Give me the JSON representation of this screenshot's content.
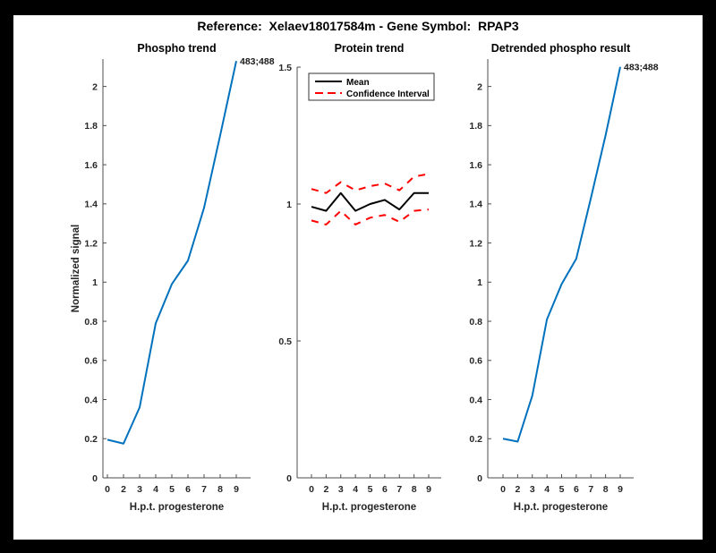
{
  "figure": {
    "title": "Reference:  Xelaev18017584m - Gene Symbol:  RPAP3",
    "background_color": "#ffffff",
    "frame_color": "#000000",
    "axis_color": "#4d4d4d",
    "accent_blue": "#0072BD",
    "ci_red": "#ff0000"
  },
  "chart_data": [
    {
      "type": "line",
      "title": "Phospho trend",
      "xlabel": "H.p.t. progesterone",
      "ylabel": "Normalized signal",
      "x_ticklabels": [
        "0",
        "2",
        "3",
        "4",
        "5",
        "6",
        "7",
        "8",
        "9"
      ],
      "yticks": [
        "0",
        "0.2",
        "0.4",
        "0.6",
        "0.8",
        "1",
        "1.2",
        "1.4",
        "1.6",
        "1.8",
        "2"
      ],
      "ylim": [
        0,
        2.14
      ],
      "grid": false,
      "legend": null,
      "series": [
        {
          "name": "phospho-signal",
          "color": "#0072BD",
          "dash": "solid",
          "width": 2,
          "values": [
            0.195,
            0.175,
            0.36,
            0.79,
            0.99,
            1.11,
            1.38,
            1.75,
            2.13
          ]
        }
      ],
      "annotations": [
        {
          "text": "483;488",
          "xi": 8,
          "y": 2.13
        }
      ]
    },
    {
      "type": "line",
      "title": "Protein trend",
      "xlabel": "H.p.t. progesterone",
      "ylabel": "",
      "x_ticklabels": [
        "0",
        "2",
        "3",
        "4",
        "5",
        "6",
        "7",
        "8",
        "9"
      ],
      "yticks": [
        "0",
        "0.5",
        "1",
        "1.5"
      ],
      "ylim": [
        0,
        1.5
      ],
      "grid": false,
      "legend": {
        "position": "top-center",
        "entries": [
          {
            "label": "Mean",
            "color": "#000000",
            "dash": "solid"
          },
          {
            "label": "Confidence Interval",
            "color": "#ff0000",
            "dash": "dashed"
          }
        ]
      },
      "series": [
        {
          "name": "mean",
          "color": "#000000",
          "dash": "solid",
          "width": 2,
          "values": [
            0.99,
            0.975,
            1.04,
            0.975,
            1.0,
            1.015,
            0.98,
            1.04,
            1.04
          ]
        },
        {
          "name": "ci-upper",
          "color": "#ff0000",
          "dash": "dashed",
          "width": 2,
          "values": [
            1.055,
            1.04,
            1.08,
            1.05,
            1.065,
            1.075,
            1.05,
            1.1,
            1.11
          ]
        },
        {
          "name": "ci-lower",
          "color": "#ff0000",
          "dash": "dashed",
          "width": 2,
          "values": [
            0.94,
            0.925,
            0.975,
            0.925,
            0.95,
            0.96,
            0.935,
            0.975,
            0.98
          ]
        }
      ],
      "annotations": []
    },
    {
      "type": "line",
      "title": "Detrended phospho result",
      "xlabel": "H.p.t. progesterone",
      "ylabel": "",
      "x_ticklabels": [
        "0",
        "2",
        "3",
        "4",
        "5",
        "6",
        "7",
        "8",
        "9"
      ],
      "yticks": [
        "0",
        "0.2",
        "0.4",
        "0.6",
        "0.8",
        "1",
        "1.2",
        "1.4",
        "1.6",
        "1.8",
        "2"
      ],
      "ylim": [
        0,
        2.14
      ],
      "grid": false,
      "legend": null,
      "series": [
        {
          "name": "detrended-signal",
          "color": "#0072BD",
          "dash": "solid",
          "width": 2,
          "values": [
            0.2,
            0.185,
            0.42,
            0.81,
            0.99,
            1.12,
            1.43,
            1.75,
            2.1
          ]
        }
      ],
      "annotations": [
        {
          "text": "483;488",
          "xi": 8,
          "y": 2.1
        }
      ]
    }
  ]
}
